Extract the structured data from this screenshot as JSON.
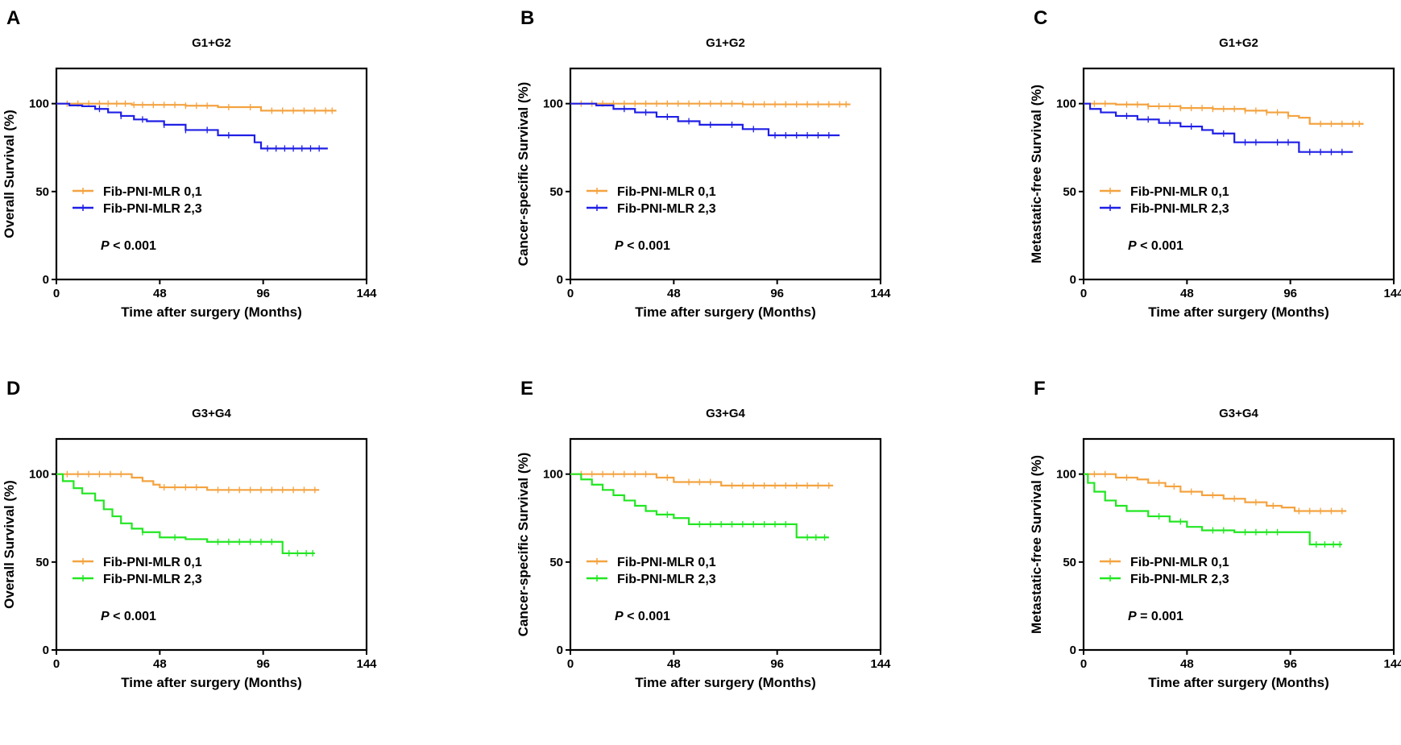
{
  "chart_data": [
    {
      "panel": "A",
      "type": "line",
      "subtype": "kaplan-meier",
      "title": "G1+G2",
      "ylabel": "Overall Survival (%)",
      "xlabel": "Time after surgery (Months)",
      "xticks": [
        "0",
        "48",
        "96",
        "144"
      ],
      "yticks": [
        "0",
        "50",
        "100"
      ],
      "xlim": [
        0,
        144
      ],
      "ylim": [
        0,
        120
      ],
      "pvalue": {
        "prefix": "P",
        "text": " < 0.001"
      },
      "series": [
        {
          "name": "Fib-PNI-MLR 0,1",
          "color": "#f4a340",
          "x": [
            0,
            20,
            35,
            60,
            75,
            95,
            130
          ],
          "y": [
            100,
            100,
            99.3,
            98.8,
            98,
            96,
            96
          ],
          "censor": [
            5,
            10,
            15,
            20,
            24,
            28,
            32,
            36,
            40,
            45,
            50,
            55,
            60,
            65,
            70,
            80,
            90,
            100,
            105,
            110,
            115,
            120,
            125,
            128
          ]
        },
        {
          "name": "Fib-PNI-MLR 2,3",
          "color": "#1f1fe6",
          "x": [
            0,
            6,
            12,
            18,
            24,
            30,
            36,
            42,
            50,
            60,
            75,
            90,
            92,
            95,
            126
          ],
          "y": [
            100,
            99,
            98.5,
            97,
            95,
            93,
            91,
            90,
            88,
            85,
            82,
            82,
            78,
            74.5,
            74.5
          ],
          "censor": [
            20,
            30,
            40,
            50,
            60,
            70,
            80,
            98,
            102,
            106,
            110,
            114,
            118,
            122
          ]
        }
      ]
    },
    {
      "panel": "B",
      "type": "line",
      "subtype": "kaplan-meier",
      "title": "G1+G2",
      "ylabel": "Cancer-specific Survival (%)",
      "xlabel": "Time after surgery (Months)",
      "xticks": [
        "0",
        "48",
        "96",
        "144"
      ],
      "yticks": [
        "0",
        "50",
        "100"
      ],
      "xlim": [
        0,
        144
      ],
      "ylim": [
        0,
        120
      ],
      "pvalue": {
        "prefix": "P",
        "text": " < 0.001"
      },
      "series": [
        {
          "name": "Fib-PNI-MLR 0,1",
          "color": "#f4a340",
          "x": [
            0,
            40,
            80,
            130
          ],
          "y": [
            100,
            100,
            99.6,
            99.6
          ],
          "censor": [
            5,
            10,
            15,
            20,
            25,
            30,
            35,
            40,
            45,
            50,
            55,
            60,
            65,
            70,
            75,
            80,
            85,
            90,
            95,
            100,
            105,
            110,
            115,
            120,
            125,
            128
          ]
        },
        {
          "name": "Fib-PNI-MLR 2,3",
          "color": "#1f1fe6",
          "x": [
            0,
            12,
            20,
            30,
            40,
            50,
            60,
            70,
            80,
            92,
            125
          ],
          "y": [
            100,
            99,
            97,
            95,
            92.5,
            90,
            88,
            88,
            85.5,
            82,
            82
          ],
          "censor": [
            25,
            35,
            45,
            55,
            65,
            75,
            85,
            95,
            100,
            105,
            110,
            115,
            120
          ]
        }
      ]
    },
    {
      "panel": "C",
      "type": "line",
      "subtype": "kaplan-meier",
      "title": "G1+G2",
      "ylabel": "Metastatic-free Survival (%)",
      "xlabel": "Time after surgery (Months)",
      "xticks": [
        "0",
        "48",
        "96",
        "144"
      ],
      "yticks": [
        "0",
        "50",
        "100"
      ],
      "xlim": [
        0,
        144
      ],
      "ylim": [
        0,
        120
      ],
      "pvalue": {
        "prefix": "P",
        "text": " < 0.001"
      },
      "series": [
        {
          "name": "Fib-PNI-MLR 0,1",
          "color": "#f4a340",
          "x": [
            0,
            15,
            30,
            45,
            60,
            75,
            85,
            95,
            100,
            105,
            130
          ],
          "y": [
            100,
            99.5,
            98.5,
            97.5,
            97,
            96,
            95,
            93,
            92,
            88.5,
            88.5
          ],
          "censor": [
            5,
            10,
            20,
            25,
            30,
            35,
            40,
            45,
            50,
            55,
            60,
            65,
            70,
            75,
            80,
            85,
            90,
            95,
            110,
            115,
            120,
            125,
            128
          ]
        },
        {
          "name": "Fib-PNI-MLR 2,3",
          "color": "#1f1fe6",
          "x": [
            0,
            3,
            8,
            15,
            25,
            35,
            45,
            55,
            60,
            70,
            85,
            100,
            125
          ],
          "y": [
            100,
            97,
            95,
            93,
            91,
            89,
            87,
            85,
            83,
            78,
            78,
            72.5,
            72.5
          ],
          "censor": [
            20,
            30,
            40,
            50,
            65,
            75,
            80,
            90,
            95,
            105,
            110,
            115,
            120
          ]
        }
      ]
    },
    {
      "panel": "D",
      "type": "line",
      "subtype": "kaplan-meier",
      "title": "G3+G4",
      "ylabel": "Overall Survival (%)",
      "xlabel": "Time after surgery (Months)",
      "xticks": [
        "0",
        "48",
        "96",
        "144"
      ],
      "yticks": [
        "0",
        "50",
        "100"
      ],
      "xlim": [
        0,
        144
      ],
      "ylim": [
        0,
        120
      ],
      "pvalue": {
        "prefix": "P",
        "text": " < 0.001"
      },
      "series": [
        {
          "name": "Fib-PNI-MLR 0,1",
          "color": "#f4a340",
          "x": [
            0,
            25,
            35,
            40,
            45,
            48,
            70,
            122
          ],
          "y": [
            100,
            100,
            98,
            96,
            94,
            92.5,
            91,
            91
          ],
          "censor": [
            5,
            10,
            15,
            20,
            25,
            30,
            50,
            55,
            60,
            65,
            75,
            80,
            85,
            90,
            95,
            100,
            105,
            110,
            115,
            120
          ]
        },
        {
          "name": "Fib-PNI-MLR 2,3",
          "color": "#22e622",
          "x": [
            0,
            3,
            8,
            12,
            18,
            22,
            26,
            30,
            35,
            40,
            48,
            60,
            70,
            105,
            120
          ],
          "y": [
            100,
            96,
            92,
            89,
            85,
            80,
            76,
            72,
            69,
            67,
            64,
            63,
            61.5,
            55,
            55
          ],
          "censor": [
            40,
            55,
            75,
            80,
            85,
            90,
            95,
            100,
            108,
            112,
            116,
            119
          ]
        }
      ]
    },
    {
      "panel": "E",
      "type": "line",
      "subtype": "kaplan-meier",
      "title": "G3+G4",
      "ylabel": "Cancer-specific Survival (%)",
      "xlabel": "Time after surgery (Months)",
      "xticks": [
        "0",
        "48",
        "96",
        "144"
      ],
      "yticks": [
        "0",
        "50",
        "100"
      ],
      "xlim": [
        0,
        144
      ],
      "ylim": [
        0,
        120
      ],
      "pvalue": {
        "prefix": "P",
        "text": " < 0.001"
      },
      "series": [
        {
          "name": "Fib-PNI-MLR 0,1",
          "color": "#f4a340",
          "x": [
            0,
            25,
            40,
            48,
            70,
            122
          ],
          "y": [
            100,
            100,
            98,
            95.5,
            93.5,
            93.5
          ],
          "censor": [
            5,
            10,
            15,
            20,
            25,
            30,
            35,
            45,
            55,
            60,
            65,
            75,
            80,
            85,
            90,
            95,
            100,
            105,
            110,
            115,
            120
          ]
        },
        {
          "name": "Fib-PNI-MLR 2,3",
          "color": "#22e622",
          "x": [
            0,
            5,
            10,
            15,
            20,
            25,
            30,
            35,
            40,
            48,
            55,
            105,
            120
          ],
          "y": [
            100,
            97,
            94,
            91,
            88,
            85,
            82,
            79,
            77,
            75,
            71.5,
            64,
            64
          ],
          "censor": [
            45,
            60,
            65,
            70,
            75,
            80,
            85,
            90,
            95,
            100,
            110,
            114,
            118
          ]
        }
      ]
    },
    {
      "panel": "F",
      "type": "line",
      "subtype": "kaplan-meier",
      "title": "G3+G4",
      "ylabel": "Metastatic-free Survival (%)",
      "xlabel": "Time after surgery (Months)",
      "xticks": [
        "0",
        "48",
        "96",
        "144"
      ],
      "yticks": [
        "0",
        "50",
        "100"
      ],
      "xlim": [
        0,
        144
      ],
      "ylim": [
        0,
        120
      ],
      "pvalue": {
        "prefix": "P",
        "text": " = 0.001"
      },
      "series": [
        {
          "name": "Fib-PNI-MLR 0,1",
          "color": "#f4a340",
          "x": [
            0,
            15,
            25,
            30,
            38,
            45,
            55,
            65,
            75,
            85,
            92,
            98,
            122
          ],
          "y": [
            100,
            98,
            97,
            95,
            93,
            90,
            88,
            86,
            84,
            82,
            81,
            79,
            79
          ],
          "censor": [
            5,
            10,
            20,
            35,
            42,
            50,
            60,
            70,
            80,
            88,
            100,
            105,
            110,
            115,
            120
          ]
        },
        {
          "name": "Fib-PNI-MLR 2,3",
          "color": "#22e622",
          "x": [
            0,
            2,
            5,
            10,
            15,
            20,
            30,
            40,
            48,
            55,
            70,
            95,
            105,
            120
          ],
          "y": [
            100,
            95,
            90,
            85,
            82,
            79,
            76,
            73,
            70,
            68,
            67,
            67,
            60,
            60
          ],
          "censor": [
            35,
            45,
            60,
            65,
            75,
            80,
            85,
            90,
            108,
            112,
            116,
            119
          ]
        }
      ]
    }
  ]
}
